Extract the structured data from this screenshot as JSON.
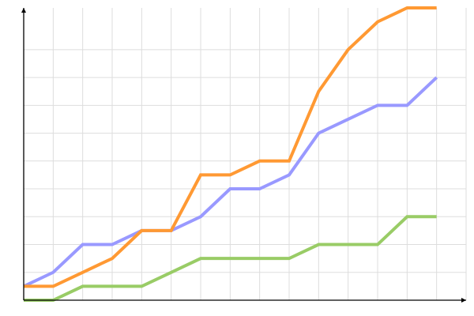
{
  "chart_data": {
    "type": "line",
    "title": "",
    "xlabel": "",
    "ylabel": "",
    "x": [
      0,
      1,
      2,
      3,
      4,
      5,
      6,
      7,
      8,
      9,
      10,
      11,
      12,
      13,
      14
    ],
    "xlim": [
      0,
      15
    ],
    "ylim": [
      0,
      10.5
    ],
    "y_grid_step": 1,
    "grid": true,
    "legend": "none",
    "series": [
      {
        "color": "#9999ff",
        "values": [
          0.5,
          1,
          2,
          2,
          2.5,
          2.5,
          3,
          4,
          4,
          4.5,
          6,
          6.5,
          7,
          7,
          8
        ]
      },
      {
        "color": "#ff9933",
        "values": [
          0.5,
          0.5,
          1,
          1.5,
          2.5,
          2.5,
          4.5,
          4.5,
          5,
          5,
          7.5,
          9,
          10,
          10.5,
          10.5
        ]
      },
      {
        "color": "#99cc66",
        "values": [
          0,
          0,
          0.5,
          0.5,
          0.5,
          1,
          1.5,
          1.5,
          1.5,
          1.5,
          2,
          2,
          2,
          3,
          3
        ]
      }
    ]
  }
}
